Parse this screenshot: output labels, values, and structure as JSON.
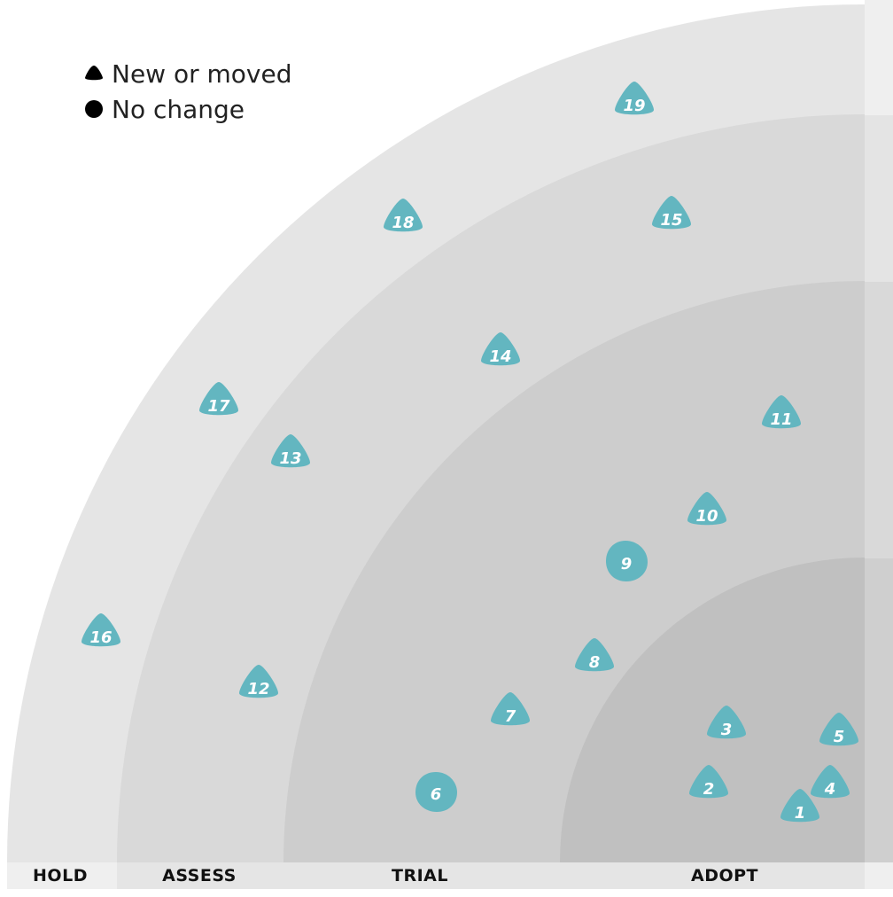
{
  "legend": {
    "new_or_moved_label": "New or moved",
    "no_change_label": "No change",
    "new_or_moved_icon": "triangle-icon",
    "no_change_icon": "circle-icon"
  },
  "rings": [
    {
      "key": "hold",
      "label": "HOLD",
      "color": "#e5e5e5"
    },
    {
      "key": "assess",
      "label": "ASSESS",
      "color": "#d9d9d9"
    },
    {
      "key": "trial",
      "label": "TRIAL",
      "color": "#cdcdcd"
    },
    {
      "key": "adopt",
      "label": "ADOPT",
      "color": "#c0c0c0"
    }
  ],
  "colors": {
    "blip": "#63b6c0",
    "blip_text": "#ffffff",
    "label_strip": "#e4e4e4",
    "label_strip_alt": "#efefef"
  },
  "blips": [
    {
      "number": "1",
      "shape": "triangle",
      "ring": "ADOPT"
    },
    {
      "number": "2",
      "shape": "triangle",
      "ring": "ADOPT"
    },
    {
      "number": "3",
      "shape": "triangle",
      "ring": "ADOPT"
    },
    {
      "number": "4",
      "shape": "triangle",
      "ring": "ADOPT"
    },
    {
      "number": "5",
      "shape": "triangle",
      "ring": "ADOPT"
    },
    {
      "number": "6",
      "shape": "circle",
      "ring": "TRIAL"
    },
    {
      "number": "7",
      "shape": "triangle",
      "ring": "TRIAL"
    },
    {
      "number": "8",
      "shape": "triangle",
      "ring": "TRIAL"
    },
    {
      "number": "9",
      "shape": "circle",
      "ring": "TRIAL"
    },
    {
      "number": "10",
      "shape": "triangle",
      "ring": "TRIAL"
    },
    {
      "number": "11",
      "shape": "triangle",
      "ring": "TRIAL"
    },
    {
      "number": "12",
      "shape": "triangle",
      "ring": "ASSESS"
    },
    {
      "number": "13",
      "shape": "triangle",
      "ring": "ASSESS"
    },
    {
      "number": "14",
      "shape": "triangle",
      "ring": "ASSESS"
    },
    {
      "number": "15",
      "shape": "triangle",
      "ring": "ASSESS"
    },
    {
      "number": "16",
      "shape": "triangle",
      "ring": "HOLD"
    },
    {
      "number": "17",
      "shape": "triangle",
      "ring": "HOLD"
    },
    {
      "number": "18",
      "shape": "triangle",
      "ring": "HOLD"
    },
    {
      "number": "19",
      "shape": "triangle",
      "ring": "HOLD"
    }
  ]
}
